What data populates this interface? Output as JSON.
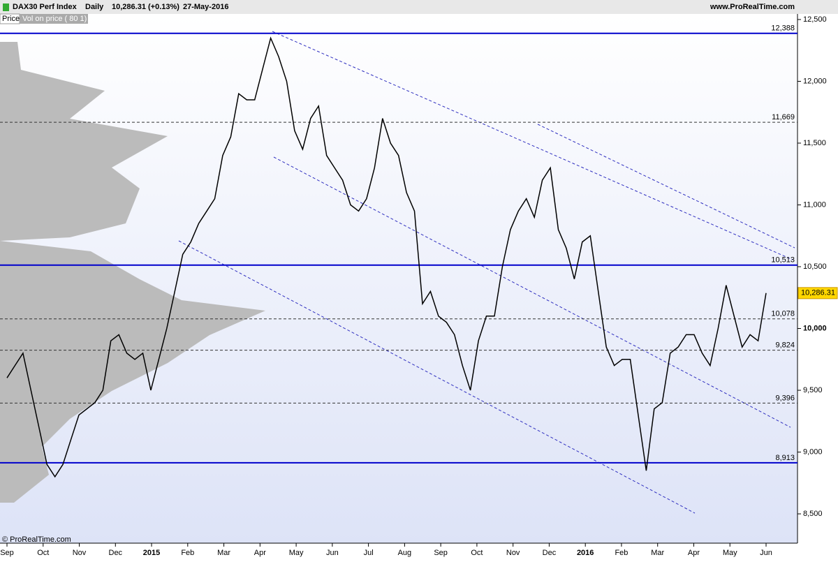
{
  "header": {
    "daily": "Daily",
    "change": "10,286.31 (+0.13%)",
    "date": "27-May-2016",
    "site": "www.ProRealTime.com",
    "price_tab": "Price",
    "indicator_tab": "Vol on price ( 80 1)",
    "copyright": "© ProRealTime.com"
  },
  "chart_data": {
    "type": "line",
    "series": [
      {
        "name": "DAX30 Perf Index",
        "color": "#000000",
        "values": [
          9600,
          9700,
          9800,
          9500,
          9200,
          8900,
          8800,
          8900,
          9100,
          9300,
          9350,
          9400,
          9500,
          9900,
          9950,
          9800,
          9750,
          9800,
          9500,
          9750,
          10000,
          10300,
          10600,
          10700,
          10850,
          10950,
          11050,
          11400,
          11550,
          11900,
          11850,
          11850,
          12100,
          12350,
          12200,
          12000,
          11600,
          11450,
          11700,
          11800,
          11400,
          11300,
          11200,
          11000,
          10950,
          11050,
          11300,
          11700,
          11500,
          11400,
          11100,
          10950,
          10200,
          10300,
          10100,
          10050,
          9950,
          9700,
          9500,
          9900,
          10100,
          10100,
          10500,
          10800,
          10950,
          11050,
          10900,
          11200,
          11300,
          10800,
          10650,
          10400,
          10700,
          10750,
          10300,
          9850,
          9700,
          9750,
          9750,
          9300,
          8850,
          9350,
          9400,
          9800,
          9850,
          9950,
          9950,
          9800,
          9700,
          10000,
          10350,
          10100,
          9850,
          9950,
          9900,
          10286.31
        ]
      }
    ],
    "x_labels": [
      "Sep",
      "Oct",
      "Nov",
      "Dec",
      "2015",
      "Feb",
      "Mar",
      "Apr",
      "May",
      "Jun",
      "Jul",
      "Aug",
      "Sep",
      "Oct",
      "Nov",
      "Dec",
      "2016",
      "Feb",
      "Mar",
      "Apr",
      "May",
      "Jun"
    ],
    "ylim": [
      8263,
      12545
    ],
    "yticks": [
      {
        "value": 8500,
        "label": "8,500"
      },
      {
        "value": 9000,
        "label": "9,000"
      },
      {
        "value": 9500,
        "label": "9,500"
      },
      {
        "value": 10000,
        "label": "10,000"
      },
      {
        "value": 10500,
        "label": "10,500"
      },
      {
        "value": 11000,
        "label": "11,000"
      },
      {
        "value": 11500,
        "label": "11,500"
      },
      {
        "value": 12000,
        "label": "12,000"
      },
      {
        "value": 12500,
        "label": "12,500"
      }
    ],
    "levels": [
      {
        "value": 12388,
        "label": "12,388",
        "style": "solid"
      },
      {
        "value": 11669,
        "label": "11,669",
        "style": "dashed"
      },
      {
        "value": 10513,
        "label": "10,513",
        "style": "solid"
      },
      {
        "value": 10078,
        "label": "10,078",
        "style": "dashed"
      },
      {
        "value": 9824,
        "label": "9,824",
        "style": "dashed"
      },
      {
        "value": 9396,
        "label": "9,396",
        "style": "dashed"
      },
      {
        "value": 8913,
        "label": "8,913",
        "style": "solid"
      }
    ],
    "last_price": {
      "value": 10286.31,
      "label": "10,286.31"
    }
  }
}
